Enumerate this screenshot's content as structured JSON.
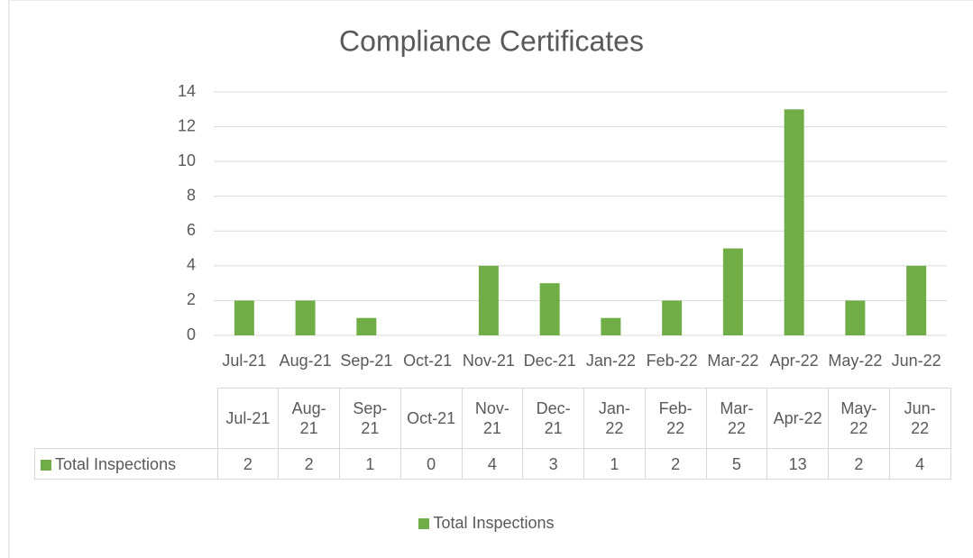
{
  "chart_data": {
    "type": "bar",
    "title": "Compliance Certificates",
    "categories": [
      "Jul-21",
      "Aug-21",
      "Sep-21",
      "Oct-21",
      "Nov-21",
      "Dec-21",
      "Jan-22",
      "Feb-22",
      "Mar-22",
      "Apr-22",
      "May-22",
      "Jun-22"
    ],
    "series": [
      {
        "name": "Total Inspections",
        "color": "#70ad47",
        "values": [
          2,
          2,
          1,
          0,
          4,
          3,
          1,
          2,
          5,
          13,
          2,
          4
        ]
      }
    ],
    "ylim": [
      0,
      14
    ],
    "yticks": [
      0,
      2,
      4,
      6,
      8,
      10,
      12,
      14
    ],
    "grid": true,
    "legend": "bottom"
  }
}
